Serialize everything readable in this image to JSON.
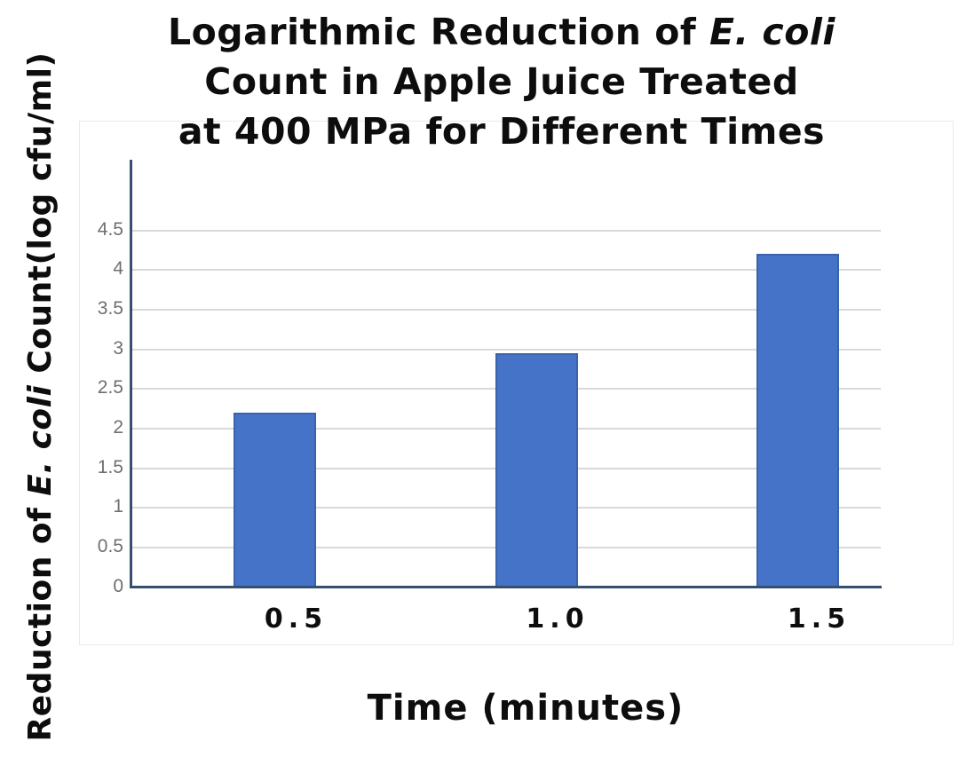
{
  "chart_data": {
    "type": "bar",
    "title": "Logarithmic Reduction of E. coli Count in Apple Juice Treated at 400 MPa for Different Times",
    "title_lines": [
      {
        "pre": "Logarithmic Reduction of ",
        "italic": "E. coli",
        "post": ""
      },
      {
        "pre": "Count in Apple Juice Treated",
        "italic": "",
        "post": ""
      },
      {
        "pre": "at 400 MPa for Different Times",
        "italic": "",
        "post": ""
      }
    ],
    "ylabel": {
      "pre": "Reduction of ",
      "italic": "E. coli",
      "post": " Count(log cfu/ml)"
    },
    "xlabel": "Time (minutes)",
    "categories": [
      "0.5",
      "1.0",
      "1.5"
    ],
    "values": [
      2.2,
      2.95,
      4.2
    ],
    "yticks": [
      "0",
      "0.5",
      "1",
      "1.5",
      "2",
      "2.5",
      "3",
      "3.5",
      "4",
      "4.5"
    ],
    "ylim": [
      0,
      5.4
    ],
    "grid": true,
    "legend": "none",
    "colors": {
      "bar_fill": "#4573C7",
      "bar_border": "#3B63AB",
      "axis_line": "#35506E",
      "gridline": "#D9D9D9",
      "ytick_text": "#6F6F6F",
      "text": "#0D0D0D",
      "chart_border": "#EAEAEA",
      "background": "#FFFFFF"
    }
  }
}
